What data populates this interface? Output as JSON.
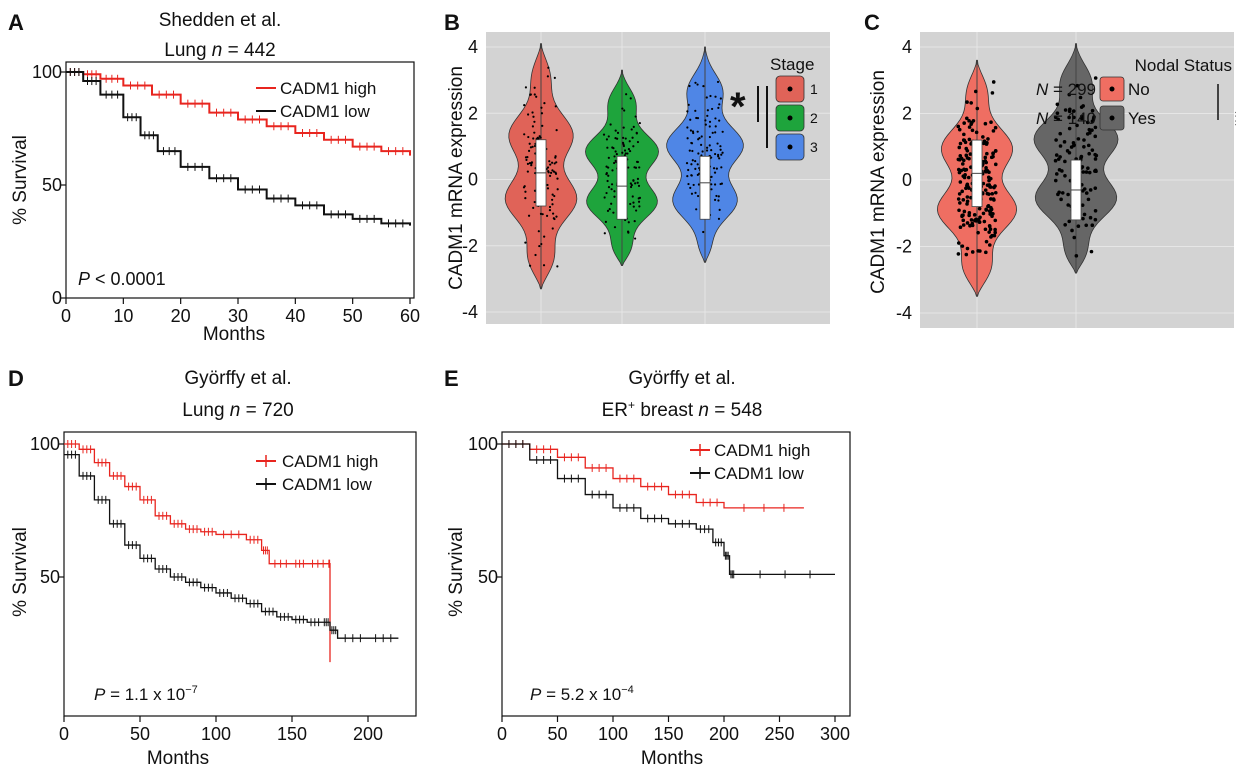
{
  "chart_data": [
    {
      "panel": "A",
      "type": "line",
      "title": "Shedden et al.",
      "subtitle_prefix": "Lung ",
      "subtitle_n": "n",
      "subtitle_eq": " = 442",
      "xlabel": "Months",
      "ylabel": "% Survival",
      "xlim": [
        0,
        60
      ],
      "ylim": [
        0,
        100
      ],
      "xticks": [
        0,
        10,
        20,
        30,
        40,
        50,
        60
      ],
      "yticks": [
        0,
        50,
        100
      ],
      "annotation_p": "P",
      "annotation_rest": " < 0.0001",
      "legend_position": "top-right",
      "series": [
        {
          "name": "CADM1 high",
          "color": "#e8251f",
          "x": [
            0,
            3,
            6,
            10,
            15,
            20,
            25,
            30,
            35,
            40,
            45,
            50,
            55,
            60
          ],
          "y": [
            100,
            99,
            97,
            94,
            90,
            86,
            82,
            79,
            76,
            73,
            70,
            67,
            65,
            63
          ]
        },
        {
          "name": "CADM1 low",
          "color": "#111111",
          "x": [
            0,
            3,
            6,
            10,
            13,
            16,
            20,
            25,
            30,
            35,
            40,
            45,
            50,
            55,
            60
          ],
          "y": [
            100,
            96,
            90,
            80,
            72,
            65,
            58,
            53,
            48,
            44,
            41,
            37,
            35,
            33,
            32
          ]
        }
      ]
    },
    {
      "panel": "B",
      "type": "violin",
      "ylabel": "CADM1 mRNA expression",
      "ylim": [
        -4,
        4
      ],
      "yticks": [
        4,
        2,
        0,
        -2,
        -4
      ],
      "legend_title": "Stage",
      "significance": "*",
      "groups": [
        {
          "name": "1",
          "color": "#e06358",
          "median": 0.2,
          "q1": -0.8,
          "q3": 1.2,
          "min": -3.3,
          "max": 4.1
        },
        {
          "name": "2",
          "color": "#1ea43c",
          "median": -0.2,
          "q1": -1.2,
          "q3": 0.7,
          "min": -2.6,
          "max": 3.3
        },
        {
          "name": "3",
          "color": "#4f86e6",
          "median": -0.1,
          "q1": -1.2,
          "q3": 0.7,
          "min": -2.5,
          "max": 4.0
        }
      ]
    },
    {
      "panel": "C",
      "type": "violin",
      "ylabel": "CADM1 mRNA expression",
      "ylim": [
        -4,
        4
      ],
      "yticks": [
        4,
        2,
        0,
        -2,
        -4
      ],
      "legend_title": "Nodal Status",
      "significance": "**",
      "groups": [
        {
          "name": "No",
          "n_label": "N",
          "n_value": " = 299",
          "color": "#ef6e62",
          "median": 0.2,
          "q1": -0.8,
          "q3": 1.2,
          "min": -3.5,
          "max": 3.6
        },
        {
          "name": "Yes",
          "n_label": "N",
          "n_value": " = 140",
          "color": "#666666",
          "median": -0.3,
          "q1": -1.2,
          "q3": 0.6,
          "min": -2.8,
          "max": 4.1
        }
      ]
    },
    {
      "panel": "D",
      "type": "line",
      "title": "Györffy et al.",
      "subtitle_prefix": "Lung ",
      "subtitle_n": "n",
      "subtitle_eq": " = 720",
      "xlabel": "Months",
      "ylabel": "% Survival",
      "xlim": [
        0,
        225
      ],
      "xticks": [
        0,
        50,
        100,
        150,
        200
      ],
      "yticks": [
        50,
        100
      ],
      "annotation_p": "P",
      "annotation_rest": " = 1.1 x 10",
      "annotation_exp": "−7",
      "legend_position": "top-right",
      "series": [
        {
          "name": "CADM1 high",
          "color": "#e8251f",
          "x": [
            0,
            10,
            20,
            30,
            40,
            50,
            60,
            70,
            80,
            90,
            100,
            120,
            130,
            135,
            150,
            160,
            174,
            175
          ],
          "y": [
            100,
            98,
            93,
            88,
            84,
            79,
            73,
            70,
            68,
            67,
            66,
            64,
            60,
            55,
            55,
            55,
            55,
            18
          ]
        },
        {
          "name": "CADM1 low",
          "color": "#111111",
          "x": [
            0,
            10,
            20,
            30,
            40,
            50,
            60,
            70,
            80,
            90,
            100,
            110,
            120,
            130,
            140,
            150,
            160,
            170,
            175,
            180,
            200,
            220
          ],
          "y": [
            96,
            88,
            79,
            70,
            62,
            57,
            53,
            50,
            48,
            46,
            44,
            42,
            40,
            37,
            35,
            34,
            33,
            33,
            30,
            27,
            27,
            27
          ]
        }
      ]
    },
    {
      "panel": "E",
      "type": "line",
      "title": "Györffy et al.",
      "subtitle_prefix": "ER",
      "subtitle_sup": "+",
      "subtitle_rest": " breast ",
      "subtitle_n": "n",
      "subtitle_eq": " = 548",
      "xlabel": "Months",
      "ylabel": "% Survival",
      "xlim": [
        0,
        310
      ],
      "xticks": [
        0,
        50,
        100,
        150,
        200,
        250,
        300
      ],
      "yticks": [
        50,
        100
      ],
      "annotation_p": "P",
      "annotation_rest": " = 5.2 x 10",
      "annotation_exp": "−4",
      "legend_position": "top-right",
      "series": [
        {
          "name": "CADM1 high",
          "color": "#e8251f",
          "x": [
            0,
            25,
            50,
            75,
            100,
            125,
            150,
            175,
            200,
            272
          ],
          "y": [
            100,
            98,
            95,
            91,
            87,
            84,
            81,
            78,
            76,
            76
          ]
        },
        {
          "name": "CADM1 low",
          "color": "#111111",
          "x": [
            0,
            25,
            50,
            75,
            100,
            125,
            150,
            175,
            190,
            200,
            205,
            210,
            300
          ],
          "y": [
            100,
            94,
            87,
            81,
            76,
            72,
            70,
            68,
            63,
            58,
            51,
            51,
            51
          ]
        }
      ]
    }
  ]
}
